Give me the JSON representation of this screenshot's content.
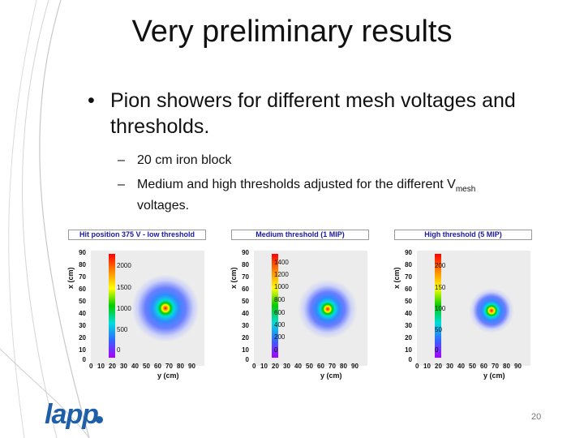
{
  "slide": {
    "title": "Very preliminary results",
    "bullet_marker": "•",
    "bullet": "Pion showers for different mesh voltages and thresholds.",
    "sub_marker": "–",
    "sub1": "20 cm iron block",
    "sub2_pre": "Medium and high thresholds adjusted for the different V",
    "sub2_subscript": "mesh",
    "sub2_post": "voltages.",
    "page_number": "20",
    "logo_text": "lapp"
  },
  "panels": [
    {
      "title": "Hit position 375 V - low threshold",
      "ylabel": "x (cm)",
      "xlabel": "y (cm)",
      "yticks": [
        "90",
        "80",
        "70",
        "60",
        "50",
        "40",
        "30",
        "20",
        "10",
        "0"
      ],
      "xticks": [
        "0",
        "10",
        "20",
        "30",
        "40",
        "50",
        "60",
        "70",
        "80",
        "90"
      ],
      "colorbar_ticks": [
        "2000",
        "1500",
        "1000",
        "500",
        "0"
      ]
    },
    {
      "title": "Medium threshold (1 MIP)",
      "ylabel": "x (cm)",
      "xlabel": "y (cm)",
      "yticks": [
        "90",
        "80",
        "70",
        "60",
        "50",
        "40",
        "30",
        "20",
        "10",
        "0"
      ],
      "xticks": [
        "0",
        "10",
        "20",
        "30",
        "40",
        "50",
        "60",
        "70",
        "80",
        "90"
      ],
      "colorbar_ticks": [
        "1400",
        "1200",
        "1000",
        "800",
        "600",
        "400",
        "200",
        "0"
      ]
    },
    {
      "title": "High threshold (5 MIP)",
      "ylabel": "x (cm)",
      "xlabel": "y (cm)",
      "yticks": [
        "90",
        "80",
        "70",
        "60",
        "50",
        "40",
        "30",
        "20",
        "10",
        "0"
      ],
      "xticks": [
        "0",
        "10",
        "20",
        "30",
        "40",
        "50",
        "60",
        "70",
        "80",
        "90"
      ],
      "colorbar_ticks": [
        "200",
        "150",
        "100",
        "50",
        "0"
      ]
    }
  ],
  "colors": {
    "logo": "#1f5fa8",
    "title_text": "#1a1aa0"
  }
}
